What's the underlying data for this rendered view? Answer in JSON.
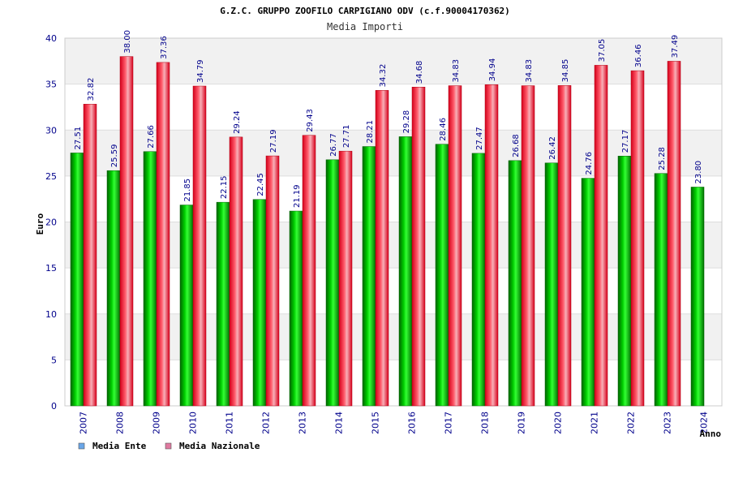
{
  "chart_data": {
    "type": "bar",
    "title": "G.Z.C. GRUPPO ZOOFILO CARPIGIANO ODV (c.f.90004170362)",
    "subtitle": "Media Importi",
    "xlabel": "Anno",
    "ylabel": "Euro",
    "ylim": [
      0,
      40
    ],
    "yticks": [
      "0",
      "5",
      "10",
      "15",
      "20",
      "25",
      "30",
      "35",
      "40"
    ],
    "grid": true,
    "legend_position": "bottom-left",
    "categories": [
      "2007",
      "2008",
      "2009",
      "2010",
      "2011",
      "2012",
      "2013",
      "2014",
      "2015",
      "2016",
      "2017",
      "2018",
      "2019",
      "2020",
      "2021",
      "2022",
      "2023",
      "2024"
    ],
    "series": [
      {
        "name": "Media Ente",
        "color": "#00b000",
        "legend_color": "#6aa6e8",
        "values": [
          27.51,
          25.59,
          27.66,
          21.85,
          22.15,
          22.45,
          21.19,
          26.77,
          28.21,
          29.28,
          28.46,
          27.47,
          26.68,
          26.42,
          24.76,
          27.17,
          25.28,
          23.8
        ],
        "labels": [
          "27.51",
          "25.59",
          "27.66",
          "21.85",
          "22.15",
          "22.45",
          "21.19",
          "26.77",
          "28.21",
          "29.28",
          "28.46",
          "27.47",
          "26.68",
          "26.42",
          "24.76",
          "27.17",
          "25.28",
          "23.80"
        ]
      },
      {
        "name": "Media Nazionale",
        "color": "#e8101c",
        "legend_color": "#e07aa0",
        "values": [
          32.82,
          38.0,
          37.36,
          34.79,
          29.24,
          27.19,
          29.43,
          27.71,
          34.32,
          34.68,
          34.83,
          34.94,
          34.83,
          34.85,
          37.05,
          36.46,
          37.49,
          null
        ],
        "labels": [
          "32.82",
          "38.00",
          "37.36",
          "34.79",
          "29.24",
          "27.19",
          "29.43",
          "27.71",
          "34.32",
          "34.68",
          "34.83",
          "34.94",
          "34.83",
          "34.85",
          "37.05",
          "36.46",
          "37.49",
          null
        ]
      }
    ]
  }
}
